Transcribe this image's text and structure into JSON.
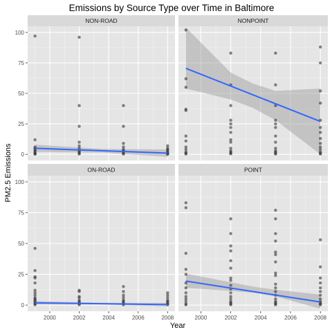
{
  "chart_data": {
    "type": "scatter",
    "title": "Emissions by Source Type over Time in Baltimore",
    "xlabel": "Year",
    "ylabel": "PM2.5 Emissions",
    "xlim": [
      1998.5,
      2008.5
    ],
    "ylim": [
      -5,
      105
    ],
    "x_ticks": [
      2000,
      2002,
      2004,
      2006,
      2008
    ],
    "y_ticks": [
      0,
      25,
      50,
      75,
      100
    ],
    "grid": true,
    "facet_layout": "2x2",
    "colors": {
      "panel_bg": "#e5e5e5",
      "strip_bg": "#d9d9d9",
      "grid_major": "#ffffff",
      "point": "#333333",
      "fit_line": "#3366ff",
      "ribbon": "#999999"
    },
    "panels": [
      {
        "name": "NON-ROAD",
        "points": [
          {
            "x": 1999,
            "y": 97
          },
          {
            "x": 1999,
            "y": 12
          },
          {
            "x": 1999,
            "y": 6
          },
          {
            "x": 1999,
            "y": 5
          },
          {
            "x": 1999,
            "y": 4
          },
          {
            "x": 1999,
            "y": 3
          },
          {
            "x": 1999,
            "y": 2
          },
          {
            "x": 1999,
            "y": 1
          },
          {
            "x": 1999,
            "y": 0.5
          },
          {
            "x": 1999,
            "y": 0.2
          },
          {
            "x": 2002,
            "y": 96
          },
          {
            "x": 2002,
            "y": 40
          },
          {
            "x": 2002,
            "y": 23
          },
          {
            "x": 2002,
            "y": 10
          },
          {
            "x": 2002,
            "y": 7
          },
          {
            "x": 2002,
            "y": 5
          },
          {
            "x": 2002,
            "y": 3
          },
          {
            "x": 2002,
            "y": 2
          },
          {
            "x": 2002,
            "y": 1
          },
          {
            "x": 2002,
            "y": 0.3
          },
          {
            "x": 2005,
            "y": 40
          },
          {
            "x": 2005,
            "y": 23
          },
          {
            "x": 2005,
            "y": 9
          },
          {
            "x": 2005,
            "y": 6
          },
          {
            "x": 2005,
            "y": 4
          },
          {
            "x": 2005,
            "y": 3
          },
          {
            "x": 2005,
            "y": 2
          },
          {
            "x": 2005,
            "y": 1
          },
          {
            "x": 2005,
            "y": 0.3
          },
          {
            "x": 2008,
            "y": 7
          },
          {
            "x": 2008,
            "y": 5
          },
          {
            "x": 2008,
            "y": 4
          },
          {
            "x": 2008,
            "y": 3
          },
          {
            "x": 2008,
            "y": 2
          },
          {
            "x": 2008,
            "y": 1
          },
          {
            "x": 2008,
            "y": 0.5
          },
          {
            "x": 2008,
            "y": 0.1
          }
        ],
        "fit": [
          [
            1999,
            5
          ],
          [
            2008,
            1
          ]
        ],
        "ribbon": [
          [
            1999,
            2,
            8
          ],
          [
            2003.5,
            1.5,
            4.5
          ],
          [
            2008,
            -2,
            4
          ]
        ]
      },
      {
        "name": "NONPOINT",
        "points": [
          {
            "x": 1999,
            "y": 102
          },
          {
            "x": 1999,
            "y": 62
          },
          {
            "x": 1999,
            "y": 55
          },
          {
            "x": 1999,
            "y": 37
          },
          {
            "x": 1999,
            "y": 36
          },
          {
            "x": 1999,
            "y": 15
          },
          {
            "x": 1999,
            "y": 11
          },
          {
            "x": 1999,
            "y": 6
          },
          {
            "x": 1999,
            "y": 4
          },
          {
            "x": 1999,
            "y": 2
          },
          {
            "x": 1999,
            "y": 1
          },
          {
            "x": 1999,
            "y": 0.3
          },
          {
            "x": 2002,
            "y": 83
          },
          {
            "x": 2002,
            "y": 57
          },
          {
            "x": 2002,
            "y": 40
          },
          {
            "x": 2002,
            "y": 28
          },
          {
            "x": 2002,
            "y": 25
          },
          {
            "x": 2002,
            "y": 22
          },
          {
            "x": 2002,
            "y": 18
          },
          {
            "x": 2002,
            "y": 12
          },
          {
            "x": 2002,
            "y": 10
          },
          {
            "x": 2002,
            "y": 5
          },
          {
            "x": 2002,
            "y": 3
          },
          {
            "x": 2002,
            "y": 2
          },
          {
            "x": 2002,
            "y": 1
          },
          {
            "x": 2002,
            "y": 0.5
          },
          {
            "x": 2005,
            "y": 83
          },
          {
            "x": 2005,
            "y": 57
          },
          {
            "x": 2005,
            "y": 40
          },
          {
            "x": 2005,
            "y": 28
          },
          {
            "x": 2005,
            "y": 25
          },
          {
            "x": 2005,
            "y": 22
          },
          {
            "x": 2005,
            "y": 15
          },
          {
            "x": 2005,
            "y": 10
          },
          {
            "x": 2005,
            "y": 5
          },
          {
            "x": 2005,
            "y": 3
          },
          {
            "x": 2005,
            "y": 2
          },
          {
            "x": 2005,
            "y": 1
          },
          {
            "x": 2005,
            "y": 0.3
          },
          {
            "x": 2008,
            "y": 88
          },
          {
            "x": 2008,
            "y": 75
          },
          {
            "x": 2008,
            "y": 52
          },
          {
            "x": 2008,
            "y": 42
          },
          {
            "x": 2008,
            "y": 28
          },
          {
            "x": 2008,
            "y": 22
          },
          {
            "x": 2008,
            "y": 18
          },
          {
            "x": 2008,
            "y": 13
          },
          {
            "x": 2008,
            "y": 9
          },
          {
            "x": 2008,
            "y": 6
          },
          {
            "x": 2008,
            "y": 4
          },
          {
            "x": 2008,
            "y": 2
          },
          {
            "x": 2008,
            "y": 1
          },
          {
            "x": 2008,
            "y": 0.3
          }
        ],
        "fit": [
          [
            1999,
            70.5
          ],
          [
            2008,
            27
          ]
        ],
        "ribbon": [
          [
            1999,
            54,
            104
          ],
          [
            2002,
            45,
            67
          ],
          [
            2003.5,
            38,
            58
          ],
          [
            2005,
            28,
            52
          ],
          [
            2008,
            0,
            54
          ]
        ]
      },
      {
        "name": "ON-ROAD",
        "points": [
          {
            "x": 1999,
            "y": 46
          },
          {
            "x": 1999,
            "y": 28
          },
          {
            "x": 1999,
            "y": 23
          },
          {
            "x": 1999,
            "y": 22
          },
          {
            "x": 1999,
            "y": 18
          },
          {
            "x": 1999,
            "y": 12
          },
          {
            "x": 1999,
            "y": 10
          },
          {
            "x": 1999,
            "y": 8
          },
          {
            "x": 1999,
            "y": 6
          },
          {
            "x": 1999,
            "y": 5
          },
          {
            "x": 1999,
            "y": 4
          },
          {
            "x": 1999,
            "y": 3
          },
          {
            "x": 1999,
            "y": 2
          },
          {
            "x": 1999,
            "y": 1
          },
          {
            "x": 1999,
            "y": 0.3
          },
          {
            "x": 2002,
            "y": 12
          },
          {
            "x": 2002,
            "y": 11
          },
          {
            "x": 2002,
            "y": 7
          },
          {
            "x": 2002,
            "y": 6
          },
          {
            "x": 2002,
            "y": 4
          },
          {
            "x": 2002,
            "y": 3
          },
          {
            "x": 2002,
            "y": 2
          },
          {
            "x": 2002,
            "y": 1
          },
          {
            "x": 2002,
            "y": 0.3
          },
          {
            "x": 2005,
            "y": 15
          },
          {
            "x": 2005,
            "y": 11
          },
          {
            "x": 2005,
            "y": 8
          },
          {
            "x": 2005,
            "y": 6
          },
          {
            "x": 2005,
            "y": 4
          },
          {
            "x": 2005,
            "y": 3
          },
          {
            "x": 2005,
            "y": 2
          },
          {
            "x": 2005,
            "y": 1
          },
          {
            "x": 2005,
            "y": 0.3
          },
          {
            "x": 2008,
            "y": 10
          },
          {
            "x": 2008,
            "y": 8
          },
          {
            "x": 2008,
            "y": 6
          },
          {
            "x": 2008,
            "y": 4
          },
          {
            "x": 2008,
            "y": 3
          },
          {
            "x": 2008,
            "y": 2
          },
          {
            "x": 2008,
            "y": 1
          },
          {
            "x": 2008,
            "y": 0.3
          }
        ],
        "fit": [
          [
            1999,
            1.8
          ],
          [
            2008,
            0.4
          ]
        ],
        "ribbon": [
          [
            1999,
            0.3,
            3.3
          ],
          [
            2003.5,
            0.5,
            1.9
          ],
          [
            2008,
            -1,
            1.8
          ]
        ]
      },
      {
        "name": "POINT",
        "points": [
          {
            "x": 1999,
            "y": 83
          },
          {
            "x": 1999,
            "y": 79
          },
          {
            "x": 1999,
            "y": 42
          },
          {
            "x": 1999,
            "y": 29
          },
          {
            "x": 1999,
            "y": 25
          },
          {
            "x": 1999,
            "y": 18
          },
          {
            "x": 1999,
            "y": 14
          },
          {
            "x": 1999,
            "y": 10
          },
          {
            "x": 1999,
            "y": 7
          },
          {
            "x": 1999,
            "y": 5
          },
          {
            "x": 1999,
            "y": 3
          },
          {
            "x": 1999,
            "y": 1
          },
          {
            "x": 1999,
            "y": 0.3
          },
          {
            "x": 2002,
            "y": 70
          },
          {
            "x": 2002,
            "y": 58
          },
          {
            "x": 2002,
            "y": 48
          },
          {
            "x": 2002,
            "y": 44
          },
          {
            "x": 2002,
            "y": 36
          },
          {
            "x": 2002,
            "y": 30
          },
          {
            "x": 2002,
            "y": 22
          },
          {
            "x": 2002,
            "y": 20
          },
          {
            "x": 2002,
            "y": 16
          },
          {
            "x": 2002,
            "y": 13
          },
          {
            "x": 2002,
            "y": 10
          },
          {
            "x": 2002,
            "y": 7
          },
          {
            "x": 2002,
            "y": 5
          },
          {
            "x": 2002,
            "y": 3
          },
          {
            "x": 2002,
            "y": 2
          },
          {
            "x": 2002,
            "y": 1
          },
          {
            "x": 2002,
            "y": 0.3
          },
          {
            "x": 2005,
            "y": 77
          },
          {
            "x": 2005,
            "y": 70
          },
          {
            "x": 2005,
            "y": 58
          },
          {
            "x": 2005,
            "y": 52
          },
          {
            "x": 2005,
            "y": 43
          },
          {
            "x": 2005,
            "y": 41
          },
          {
            "x": 2005,
            "y": 35
          },
          {
            "x": 2005,
            "y": 26
          },
          {
            "x": 2005,
            "y": 24
          },
          {
            "x": 2005,
            "y": 17
          },
          {
            "x": 2005,
            "y": 14
          },
          {
            "x": 2005,
            "y": 11
          },
          {
            "x": 2005,
            "y": 8
          },
          {
            "x": 2005,
            "y": 5
          },
          {
            "x": 2005,
            "y": 3
          },
          {
            "x": 2005,
            "y": 2
          },
          {
            "x": 2005,
            "y": 1
          },
          {
            "x": 2005,
            "y": 0.3
          },
          {
            "x": 2008,
            "y": 53
          },
          {
            "x": 2008,
            "y": 31
          },
          {
            "x": 2008,
            "y": 22
          },
          {
            "x": 2008,
            "y": 18
          },
          {
            "x": 2008,
            "y": 14
          },
          {
            "x": 2008,
            "y": 11
          },
          {
            "x": 2008,
            "y": 8
          },
          {
            "x": 2008,
            "y": 5
          },
          {
            "x": 2008,
            "y": 3
          },
          {
            "x": 2008,
            "y": 2
          },
          {
            "x": 2008,
            "y": 1
          },
          {
            "x": 2008,
            "y": 0.3
          }
        ],
        "fit": [
          [
            1999,
            19.5
          ],
          [
            2008,
            2.5
          ]
        ],
        "ribbon": [
          [
            1999,
            14,
            25.5
          ],
          [
            2002,
            11.5,
            18.5
          ],
          [
            2003.5,
            10,
            15
          ],
          [
            2005,
            7,
            12.5
          ],
          [
            2008,
            -3,
            8.5
          ]
        ]
      }
    ]
  }
}
